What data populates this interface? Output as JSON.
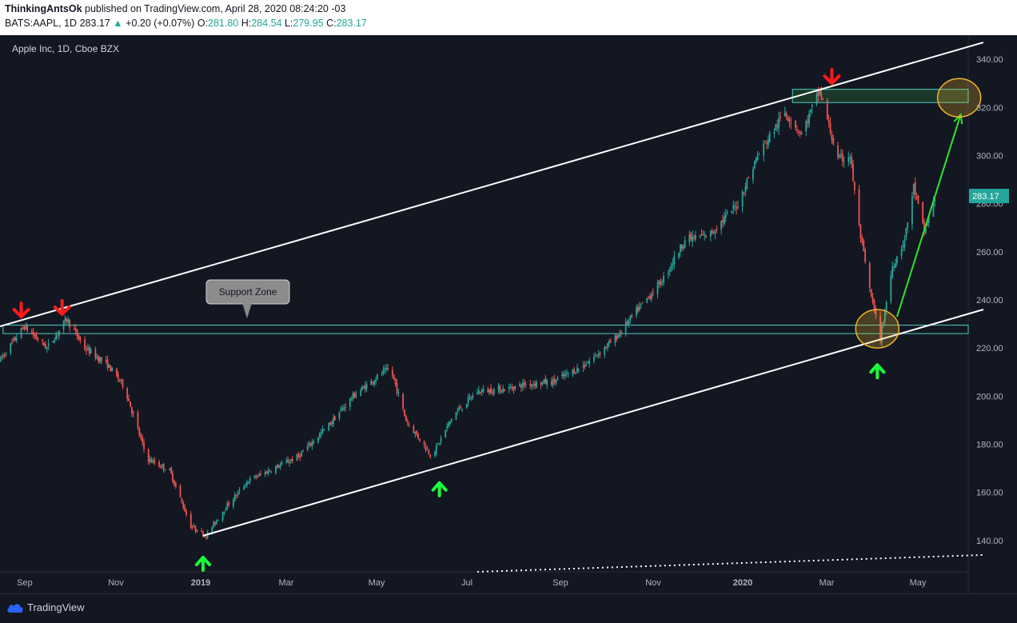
{
  "header": {
    "author": "ThinkingAntsOk",
    "published_text": "published on TradingView.com, April 28, 2020 08:24:20 -03",
    "symbol": "BATS:AAPL, 1D",
    "last": "283.17",
    "change": "+0.20 (+0.07%)",
    "o_label": "O:",
    "o": "281.80",
    "h_label": "H:",
    "h": "284.54",
    "l_label": "L:",
    "l": "279.95",
    "c_label": "C:",
    "c": "283.17"
  },
  "footer": {
    "brand": "TradingView"
  },
  "colors": {
    "up": "#26a69a",
    "down": "#ef5350",
    "background": "#131722",
    "zone_border": "#4dd0c4",
    "target_zone": "#1f3d2a",
    "circle": "#f0b429",
    "arrow_red": "#ff1a1a",
    "arrow_green": "#1aff3c",
    "projection": "#2ee52e"
  },
  "chart_data": {
    "type": "candlestick",
    "title": "Apple Inc, 1D, Cboe BZX",
    "xlabel": "",
    "ylabel": "",
    "ylim": [
      127,
      350
    ],
    "y_ticks": [
      140,
      160,
      180,
      200,
      220,
      240,
      260,
      280,
      300,
      320,
      340
    ],
    "y_tick_labels": [
      "140.00",
      "160.00",
      "180.00",
      "200.00",
      "220.00",
      "240.00",
      "260.00",
      "280.00",
      "300.00",
      "320.00",
      "340.00"
    ],
    "x_tick_labels": [
      "Sep",
      "Nov",
      "2019",
      "Mar",
      "May",
      "Jul",
      "Sep",
      "Nov",
      "2020",
      "Mar",
      "May"
    ],
    "x_tick_bold": [
      false,
      false,
      true,
      false,
      false,
      false,
      false,
      false,
      true,
      false,
      false
    ],
    "x_range": [
      "2018-08-20",
      "2020-05-20"
    ],
    "last_price": 283.17,
    "last_price_label": "283.17",
    "price_path": [
      [
        "2018-08-20",
        215
      ],
      [
        "2018-09-05",
        229
      ],
      [
        "2018-09-20",
        220
      ],
      [
        "2018-10-03",
        232
      ],
      [
        "2018-10-15",
        220
      ],
      [
        "2018-10-30",
        213
      ],
      [
        "2018-11-10",
        204
      ],
      [
        "2018-11-25",
        174
      ],
      [
        "2018-12-10",
        169
      ],
      [
        "2018-12-24",
        146
      ],
      [
        "2019-01-03",
        142
      ],
      [
        "2019-01-15",
        153
      ],
      [
        "2019-01-31",
        165
      ],
      [
        "2019-02-20",
        171
      ],
      [
        "2019-03-05",
        175
      ],
      [
        "2019-03-25",
        188
      ],
      [
        "2019-04-10",
        200
      ],
      [
        "2019-04-30",
        210
      ],
      [
        "2019-05-05",
        211
      ],
      [
        "2019-05-15",
        190
      ],
      [
        "2019-06-01",
        175
      ],
      [
        "2019-06-15",
        192
      ],
      [
        "2019-07-01",
        202
      ],
      [
        "2019-07-20",
        203
      ],
      [
        "2019-08-02",
        205
      ],
      [
        "2019-08-20",
        206
      ],
      [
        "2019-09-10",
        213
      ],
      [
        "2019-09-30",
        224
      ],
      [
        "2019-10-15",
        236
      ],
      [
        "2019-10-31",
        248
      ],
      [
        "2019-11-15",
        265
      ],
      [
        "2019-12-01",
        267
      ],
      [
        "2019-12-20",
        280
      ],
      [
        "2020-01-02",
        300
      ],
      [
        "2020-01-20",
        318
      ],
      [
        "2020-01-31",
        309
      ],
      [
        "2020-02-12",
        327
      ],
      [
        "2020-02-24",
        298
      ],
      [
        "2020-03-03",
        300
      ],
      [
        "2020-03-09",
        270
      ],
      [
        "2020-03-16",
        244
      ],
      [
        "2020-03-23",
        224
      ],
      [
        "2020-03-31",
        254
      ],
      [
        "2020-04-08",
        265
      ],
      [
        "2020-04-14",
        287
      ],
      [
        "2020-04-21",
        268
      ],
      [
        "2020-04-28",
        283
      ]
    ],
    "annotations": {
      "support_zone": {
        "label": "Support Zone",
        "y_low": 226,
        "y_high": 229.5,
        "x_from": "2018-08-22"
      },
      "resistance_zone": {
        "y_low": 322,
        "y_high": 327.5,
        "x_from": "2020-01-25"
      },
      "channel_upper": [
        [
          "2018-08-20",
          229
        ],
        [
          "2020-05-30",
          347
        ]
      ],
      "channel_lower": [
        [
          "2019-01-01",
          142
        ],
        [
          "2020-05-30",
          236
        ]
      ],
      "dotted_line": [
        [
          "2019-07-01",
          127
        ],
        [
          "2020-05-30",
          134
        ]
      ],
      "projection_arrow": [
        [
          "2020-04-03",
          233
        ],
        [
          "2020-05-15",
          317
        ]
      ],
      "highlight_circles": [
        [
          "2020-03-21",
          228
        ],
        [
          "2020-05-14",
          324
        ]
      ],
      "red_arrows": [
        [
          "2018-09-03",
          236
        ],
        [
          "2018-09-30",
          237
        ],
        [
          "2020-02-20",
          333
        ]
      ],
      "green_arrows": [
        [
          "2019-01-01",
          130
        ],
        [
          "2019-06-06",
          161
        ],
        [
          "2020-03-21",
          210
        ]
      ]
    }
  }
}
